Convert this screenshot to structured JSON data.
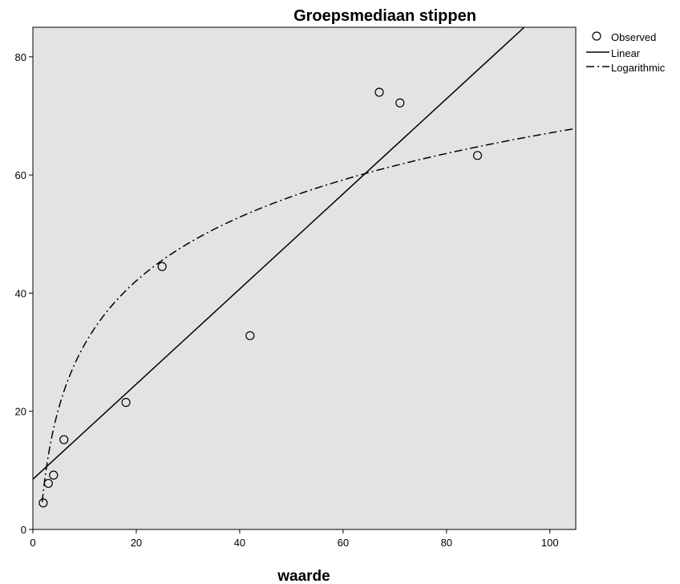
{
  "chart_data": {
    "type": "scatter",
    "title": "Groepsmediaan stippen",
    "xlabel": "waarde",
    "ylabel": "",
    "xlim": [
      0,
      105
    ],
    "ylim": [
      0,
      85
    ],
    "xticks": [
      0,
      20,
      40,
      60,
      80,
      100
    ],
    "yticks": [
      0,
      20,
      40,
      60,
      80
    ],
    "grid": false,
    "legend_position": "right",
    "background": "#e3e3e3",
    "series": [
      {
        "name": "Observed",
        "kind": "points",
        "x": [
          2,
          3,
          4,
          6,
          18,
          25,
          42,
          67,
          71,
          86
        ],
        "y": [
          4.5,
          7.8,
          9.2,
          15.2,
          21.5,
          44.5,
          32.8,
          74.0,
          72.2,
          63.3
        ]
      },
      {
        "name": "Linear",
        "kind": "line",
        "intercept": 8.5,
        "slope": 0.805
      },
      {
        "name": "Logarithmic",
        "kind": "dashdot",
        "a": -4.5,
        "b": 15.55
      }
    ]
  }
}
